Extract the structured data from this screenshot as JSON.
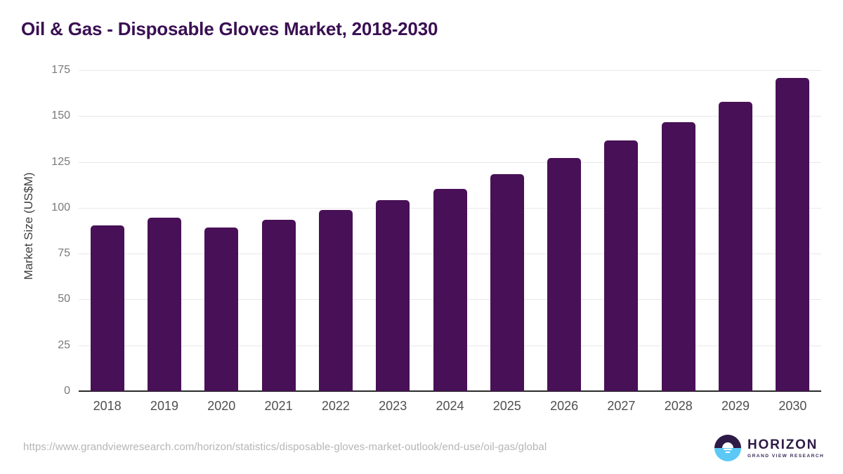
{
  "chart_data": {
    "type": "bar",
    "title": "Oil & Gas - Disposable Gloves Market, 2018-2030",
    "xlabel": "",
    "ylabel": "Market Size (US$M)",
    "ylim": [
      0,
      175
    ],
    "yticks": [
      0,
      25,
      50,
      75,
      100,
      125,
      150,
      175
    ],
    "grid": "horizontal",
    "legend": "none",
    "bar_color": "#481056",
    "categories": [
      "2018",
      "2019",
      "2020",
      "2021",
      "2022",
      "2023",
      "2024",
      "2025",
      "2026",
      "2027",
      "2028",
      "2029",
      "2030"
    ],
    "values": [
      90.4,
      94.6,
      89.2,
      93.4,
      98.9,
      104.2,
      110.4,
      118.3,
      127.0,
      136.6,
      146.8,
      157.9,
      170.7
    ]
  },
  "colors": {
    "title": "#3a0f53",
    "bar": "#481056",
    "gridline": "#e8e8e8",
    "axis_line": "#2b2b2b",
    "y_tick_label": "#7a7a7a",
    "x_tick_label": "#4f4f4f",
    "source_url": "#b5b5b5",
    "logo_purple": "#2e1a47",
    "logo_blue": "#5bc8f5"
  },
  "footer": {
    "source_url": "https://www.grandviewresearch.com/horizon/statistics/disposable-gloves-market-outlook/end-use/oil-gas/global",
    "logo": {
      "brand": "HORIZON",
      "subtitle": "GRAND VIEW RESEARCH"
    }
  }
}
